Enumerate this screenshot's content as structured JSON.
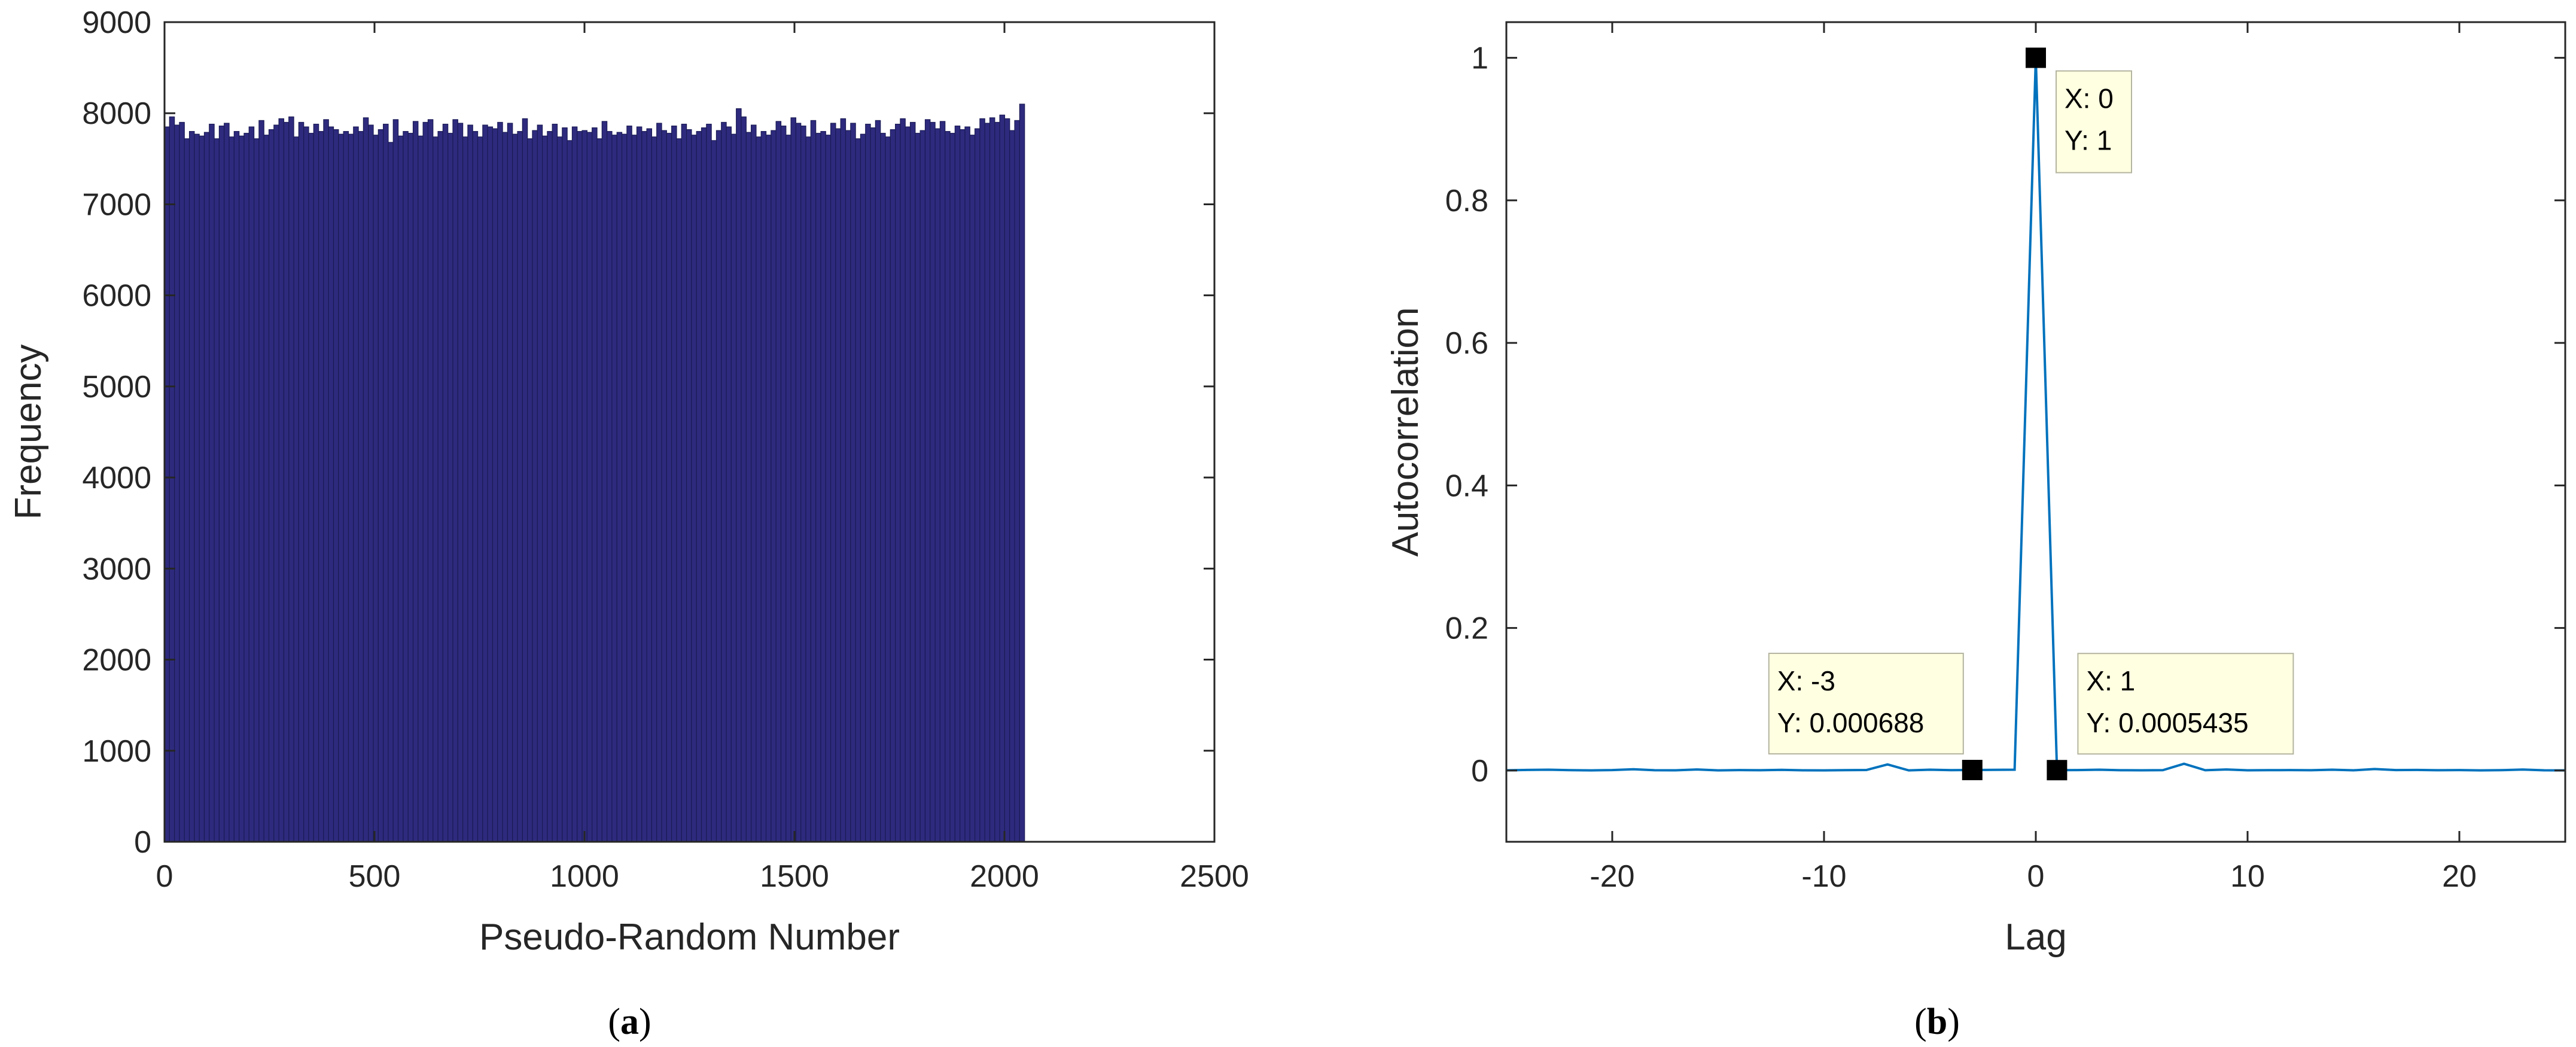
{
  "chart_data": [
    {
      "type": "bar",
      "panel": "(a)",
      "xlabel": "Pseudo-Random Number",
      "ylabel": "Frequency",
      "xlim": [
        0,
        2500
      ],
      "ylim": [
        0,
        9000
      ],
      "xticks": [
        0,
        500,
        1000,
        1500,
        2000,
        2500
      ],
      "yticks": [
        0,
        1000,
        2000,
        3000,
        4000,
        5000,
        6000,
        7000,
        8000,
        9000
      ],
      "bin_range": [
        0,
        2048
      ],
      "bar_color": "#2e2b7e",
      "bar_edge_color": "#1a1a55",
      "grid": false,
      "values": [
        7850,
        7960,
        7870,
        7900,
        7720,
        7800,
        7770,
        7750,
        7790,
        7880,
        7720,
        7860,
        7890,
        7740,
        7800,
        7750,
        7780,
        7850,
        7720,
        7920,
        7760,
        7820,
        7870,
        7940,
        7900,
        7960,
        7740,
        7900,
        7850,
        7780,
        7880,
        7800,
        7930,
        7850,
        7820,
        7770,
        7800,
        7770,
        7850,
        7800,
        7950,
        7870,
        7760,
        7820,
        7880,
        7680,
        7930,
        7750,
        7800,
        7780,
        7910,
        7750,
        7900,
        7930,
        7740,
        7800,
        7880,
        7780,
        7930,
        7890,
        7740,
        7870,
        7800,
        7740,
        7870,
        7850,
        7830,
        7900,
        7790,
        7890,
        7770,
        7800,
        7940,
        7720,
        7810,
        7870,
        7750,
        7800,
        7880,
        7740,
        7840,
        7700,
        7850,
        7800,
        7810,
        7790,
        7840,
        7720,
        7910,
        7800,
        7760,
        7790,
        7770,
        7860,
        7760,
        7850,
        7800,
        7830,
        7740,
        7890,
        7810,
        7780,
        7860,
        7720,
        7880,
        7820,
        7760,
        7800,
        7840,
        7880,
        7700,
        7810,
        7900,
        7850,
        7770,
        8050,
        7960,
        7790,
        7870,
        7740,
        7800,
        7760,
        7810,
        7910,
        7860,
        7760,
        7950,
        7890,
        7860,
        7740,
        7920,
        7780,
        7800,
        7760,
        7890,
        7830,
        7940,
        7810,
        7890,
        7720,
        7770,
        7880,
        7840,
        7920,
        7780,
        7740,
        7820,
        7880,
        7940,
        7850,
        7900,
        7780,
        7810,
        7930,
        7900,
        7830,
        7910,
        7800,
        7780,
        7860,
        7820,
        7850,
        7760,
        7830,
        7940,
        7890,
        7950,
        7900,
        7980,
        7940,
        7810,
        7920,
        8100
      ]
    },
    {
      "type": "line",
      "panel": "(b)",
      "xlabel": "Lag",
      "ylabel": "Autocorrelation",
      "xlim": [
        -25,
        25
      ],
      "ylim": [
        -0.1,
        1.05
      ],
      "xticks": [
        -20,
        -10,
        0,
        10,
        20
      ],
      "yticks": [
        0,
        0.2,
        0.4,
        0.6,
        0.8,
        1
      ],
      "line_color": "#0072bd",
      "grid": false,
      "series": [
        {
          "x": [
            -25,
            -24,
            -23,
            -22,
            -21,
            -20,
            -19,
            -18,
            -17,
            -16,
            -15,
            -14,
            -13,
            -12,
            -11,
            -10,
            -9,
            -8,
            -7,
            -6,
            -5,
            -4,
            -3,
            -2,
            -1,
            0,
            1,
            2,
            3,
            4,
            5,
            6,
            7,
            8,
            9,
            10,
            11,
            12,
            13,
            14,
            15,
            16,
            17,
            18,
            19,
            20,
            21,
            22,
            23,
            24,
            25
          ],
          "y": [
            0.0003,
            0.0008,
            0.0012,
            0.0005,
            0.0002,
            0.0006,
            0.0018,
            0.0004,
            0.0003,
            0.0015,
            0.0002,
            0.0006,
            0.0004,
            0.0009,
            0.0003,
            0.0002,
            0.0005,
            0.0007,
            0.0085,
            0.0002,
            0.0012,
            0.0005,
            0.000688,
            0.0009,
            0.0011,
            1,
            0.0005435,
            0.0006,
            0.0012,
            0.0004,
            0.0003,
            0.0005,
            0.0095,
            0.0004,
            0.0015,
            0.0003,
            0.0005,
            0.0006,
            0.0004,
            0.0011,
            0.0003,
            0.0021,
            0.0006,
            0.0008,
            0.0004,
            0.0006,
            0.0002,
            0.0005,
            0.0014,
            0.0003,
            0.0002
          ]
        }
      ],
      "datatips": [
        {
          "x": 0,
          "y": 1,
          "lines": [
            "X: 0",
            "Y: 1"
          ]
        },
        {
          "x": -3,
          "y": 0.000688,
          "lines": [
            "X: -3",
            "Y: 0.000688"
          ]
        },
        {
          "x": 1,
          "y": 0.0005435,
          "lines": [
            "X: 1",
            "Y: 0.0005435"
          ]
        }
      ]
    }
  ],
  "captions": {
    "a_open": "(",
    "a_letter": "a",
    "a_close": ")",
    "b_open": "(",
    "b_letter": "b",
    "b_close": ")"
  },
  "colors": {
    "axes": "#262626",
    "datatip_bg": "#ffffe1",
    "datatip_border": "#b4b4a0",
    "marker": "#000000"
  }
}
